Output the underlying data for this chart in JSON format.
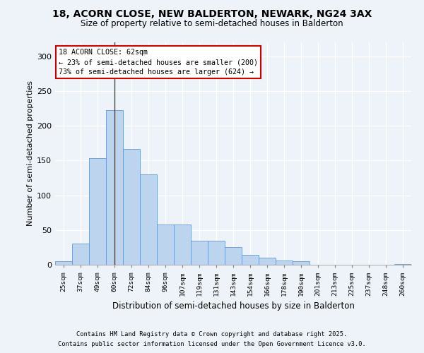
{
  "title1": "18, ACORN CLOSE, NEW BALDERTON, NEWARK, NG24 3AX",
  "title2": "Size of property relative to semi-detached houses in Balderton",
  "xlabel": "Distribution of semi-detached houses by size in Balderton",
  "ylabel": "Number of semi-detached properties",
  "categories": [
    "25sqm",
    "37sqm",
    "49sqm",
    "60sqm",
    "72sqm",
    "84sqm",
    "96sqm",
    "107sqm",
    "119sqm",
    "131sqm",
    "143sqm",
    "154sqm",
    "166sqm",
    "178sqm",
    "190sqm",
    "201sqm",
    "213sqm",
    "225sqm",
    "237sqm",
    "248sqm",
    "260sqm"
  ],
  "values": [
    5,
    30,
    153,
    222,
    167,
    130,
    58,
    58,
    35,
    35,
    25,
    14,
    10,
    6,
    5,
    0,
    0,
    0,
    0,
    0,
    1
  ],
  "bar_color": "#bdd4ee",
  "bar_edge_color": "#6699cc",
  "highlight_bar_index": 3,
  "highlight_line_color": "#444444",
  "annotation_title": "18 ACORN CLOSE: 62sqm",
  "annotation_line1": "← 23% of semi-detached houses are smaller (200)",
  "annotation_line2": "73% of semi-detached houses are larger (624) →",
  "annotation_box_facecolor": "#ffffff",
  "annotation_box_edgecolor": "#cc0000",
  "footer1": "Contains HM Land Registry data © Crown copyright and database right 2025.",
  "footer2": "Contains public sector information licensed under the Open Government Licence v3.0.",
  "ylim": [
    0,
    320
  ],
  "yticks": [
    0,
    50,
    100,
    150,
    200,
    250,
    300
  ],
  "background_color": "#eef2f9",
  "grid_color": "#ffffff",
  "title1_fontsize": 10,
  "title2_fontsize": 8.5
}
